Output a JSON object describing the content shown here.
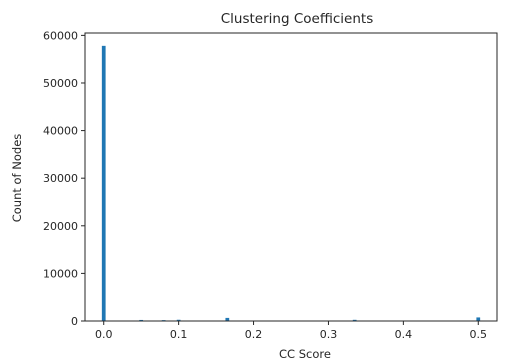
{
  "chart_data": {
    "type": "bar",
    "title": "Clustering Coefficients",
    "xlabel": "CC Score",
    "ylabel": "Count of Nodes",
    "xlim": [
      -0.025,
      0.525
    ],
    "ylim": [
      0,
      60500
    ],
    "bin_width": 0.005,
    "x_ticks": [
      0.0,
      0.1,
      0.2,
      0.3,
      0.4,
      0.5
    ],
    "x_tick_labels": [
      "0.0",
      "0.1",
      "0.2",
      "0.3",
      "0.4",
      "0.5"
    ],
    "y_ticks": [
      0,
      10000,
      20000,
      30000,
      40000,
      50000,
      60000
    ],
    "y_tick_labels": [
      "0",
      "10000",
      "20000",
      "30000",
      "40000",
      "50000",
      "60000"
    ],
    "bar_color": "#1f77b4",
    "grid": false,
    "bins": [
      {
        "x": 0.0,
        "value": 57800
      },
      {
        "x": 0.05,
        "value": 220
      },
      {
        "x": 0.08,
        "value": 180
      },
      {
        "x": 0.1,
        "value": 260
      },
      {
        "x": 0.165,
        "value": 650
      },
      {
        "x": 0.335,
        "value": 250
      },
      {
        "x": 0.5,
        "value": 750
      }
    ]
  }
}
